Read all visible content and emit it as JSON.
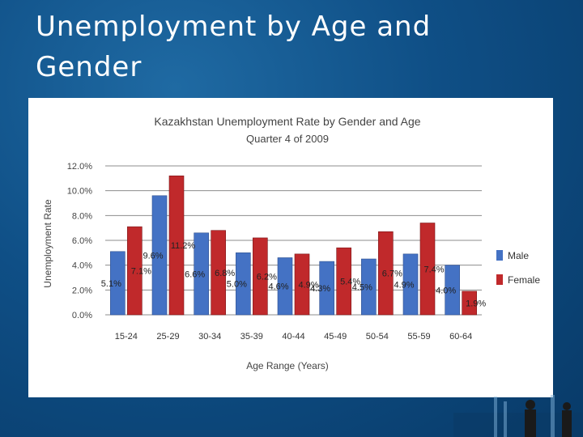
{
  "slide": {
    "title": "Unemployment by Age and Gender"
  },
  "chart_data": {
    "type": "bar",
    "title": "Kazakhstan Unemployment Rate by Gender and Age",
    "subtitle": "Quarter 4 of 2009",
    "xlabel": "Age Range (Years)",
    "ylabel": "Unemployment Rate",
    "ylim": [
      0,
      12
    ],
    "yticks": [
      "0.0%",
      "2.0%",
      "4.0%",
      "6.0%",
      "8.0%",
      "10.0%",
      "12.0%"
    ],
    "grid": true,
    "legend_position": "right",
    "categories": [
      "15-24",
      "25-29",
      "30-34",
      "35-39",
      "40-44",
      "45-49",
      "50-54",
      "55-59",
      "60-64"
    ],
    "series": [
      {
        "name": "Male",
        "color": "#4472c4",
        "values": [
          5.1,
          9.6,
          6.6,
          5.0,
          4.6,
          4.3,
          4.5,
          4.9,
          4.0
        ],
        "labels": [
          "5.1%",
          "9.6%",
          "6.6%",
          "5.0%",
          "4.6%",
          "4.3%",
          "4.5%",
          "4.9%",
          "4.0%"
        ]
      },
      {
        "name": "Female",
        "color": "#c0292b",
        "values": [
          7.1,
          11.2,
          6.8,
          6.2,
          4.9,
          5.4,
          6.7,
          7.4,
          1.9
        ],
        "labels": [
          "7.1%",
          "11.2%",
          "6.8%",
          "6.2%",
          "4.9%",
          "5.4%",
          "6.7%",
          "7.4%",
          "1.9%"
        ]
      }
    ]
  }
}
